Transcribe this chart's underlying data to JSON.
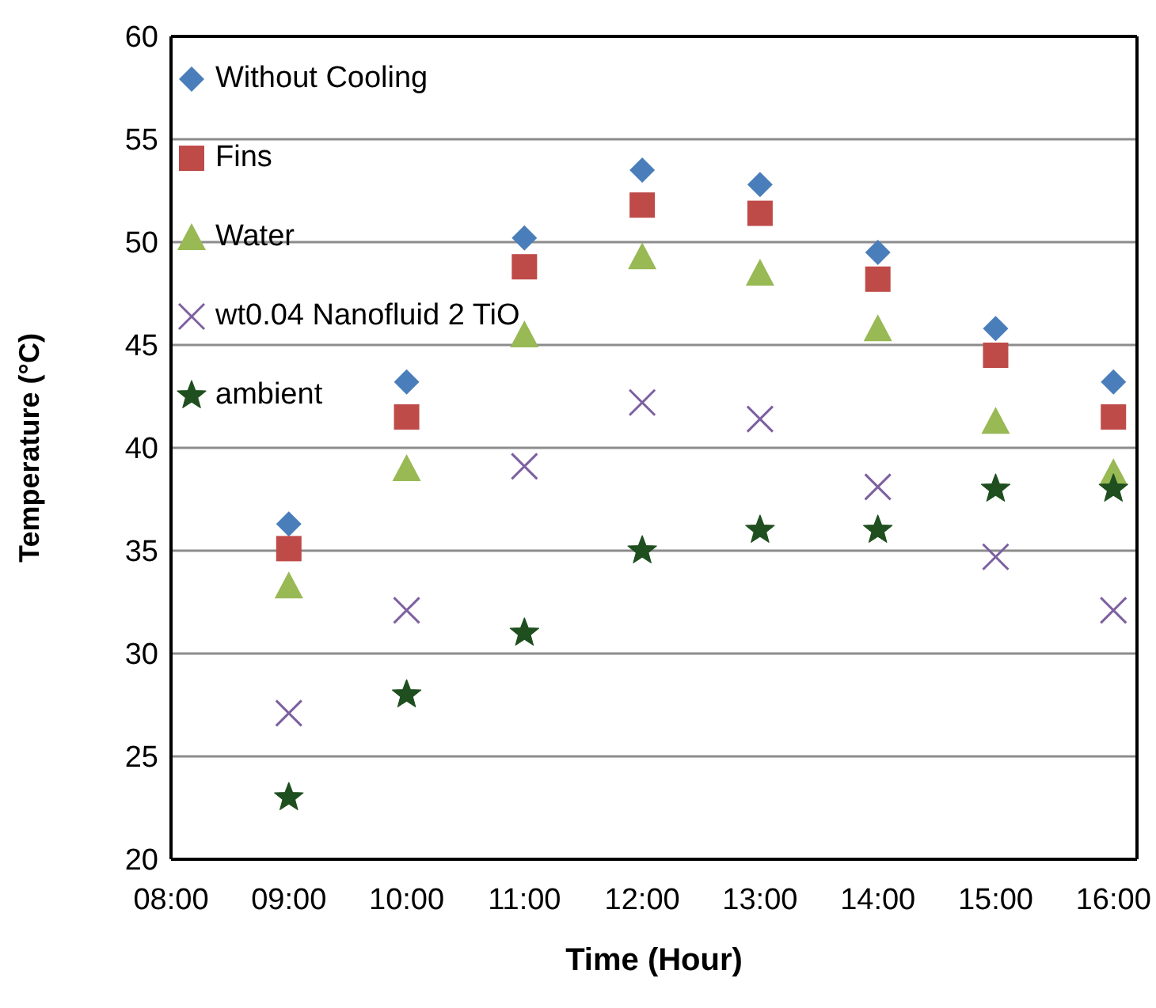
{
  "chart_data": {
    "type": "scatter",
    "xlabel": "Time (Hour)",
    "ylabel": "Temperature (°C)",
    "x": [
      9,
      10,
      11,
      12,
      13,
      14,
      15,
      16
    ],
    "xlim": [
      8,
      16.2
    ],
    "xticks": [
      {
        "value": 8,
        "label": "08:00"
      },
      {
        "value": 9,
        "label": "09:00"
      },
      {
        "value": 10,
        "label": "10:00"
      },
      {
        "value": 11,
        "label": "11:00"
      },
      {
        "value": 12,
        "label": "12:00"
      },
      {
        "value": 13,
        "label": "13:00"
      },
      {
        "value": 14,
        "label": "14:00"
      },
      {
        "value": 15,
        "label": "15:00"
      },
      {
        "value": 16,
        "label": "16:00"
      }
    ],
    "ylim": [
      20,
      60
    ],
    "yticks": [
      20,
      25,
      30,
      35,
      40,
      45,
      50,
      55,
      60
    ],
    "grid": "y",
    "legend": "top left",
    "series": [
      {
        "name": "Without Cooling",
        "color": "#4a7ebb",
        "marker": "diamond",
        "values": [
          36.3,
          43.2,
          50.2,
          53.5,
          52.8,
          49.5,
          45.8,
          43.2
        ]
      },
      {
        "name": "Fins",
        "color": "#be4b48",
        "marker": "square",
        "values": [
          35.1,
          41.5,
          48.8,
          51.8,
          51.4,
          48.2,
          44.5,
          41.5
        ]
      },
      {
        "name": "Water",
        "color": "#98b954",
        "marker": "triangle",
        "values": [
          33.3,
          39,
          45.5,
          49.3,
          48.5,
          45.8,
          41.3,
          38.8
        ]
      },
      {
        "name": "wt0.04 Nanofluid 2 TiO",
        "color": "#7d60a0",
        "marker": "cross",
        "values": [
          27.1,
          32.1,
          39.1,
          42.2,
          41.4,
          38.1,
          34.7,
          32.1
        ]
      },
      {
        "name": "ambient",
        "color": "#1f4e1f",
        "marker": "star",
        "values": [
          23,
          28,
          31,
          35,
          36,
          36,
          38,
          38
        ]
      }
    ]
  }
}
